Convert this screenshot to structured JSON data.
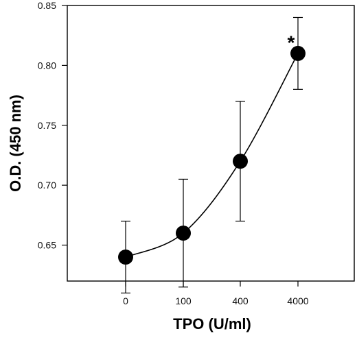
{
  "chart_data": {
    "type": "line",
    "title": "",
    "xlabel": "TPO (U/ml)",
    "ylabel": "O.D. (450 nm)",
    "categories": [
      "0",
      "100",
      "400",
      "4000"
    ],
    "series": [
      {
        "values": [
          0.64,
          0.66,
          0.72,
          0.81
        ],
        "errors": [
          0.03,
          0.045,
          0.05,
          0.03
        ]
      }
    ],
    "ylim": [
      0.62,
      0.85
    ],
    "yticks": [
      0.65,
      0.7,
      0.75,
      0.8,
      0.85
    ],
    "ytick_labels": [
      "0.65",
      "0.70",
      "0.75",
      "0.80",
      "0.85"
    ],
    "grid": false,
    "legend": "none",
    "annotations": [
      {
        "category": "4000",
        "text": "*"
      }
    ],
    "colors": {
      "line": "#000000",
      "marker": "#000000",
      "axis": "#000000"
    }
  }
}
